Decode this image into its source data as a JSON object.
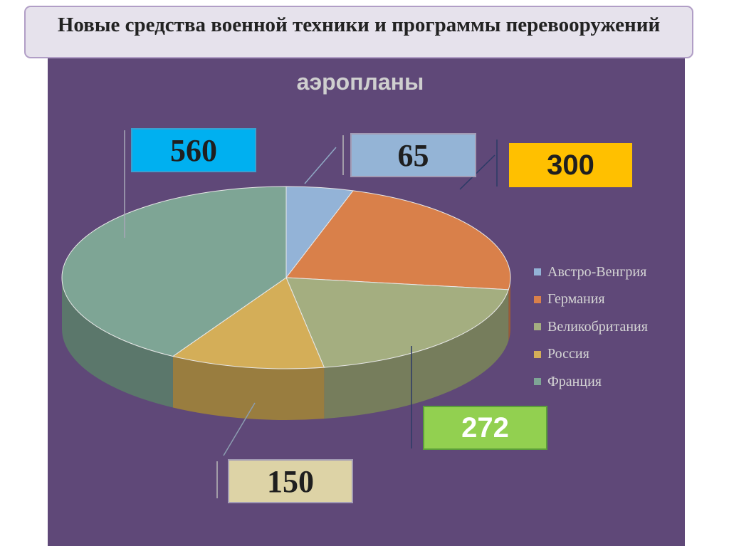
{
  "slide": {
    "title": "Новые средства военной техники и программы перевооружений"
  },
  "chart_data": {
    "type": "pie",
    "title": "аэропланы",
    "categories": [
      "Австро-Венгрия",
      "Германия",
      "Великобритания",
      "Россия",
      "Франция"
    ],
    "values": [
      65,
      300,
      272,
      150,
      560
    ],
    "colors": [
      "#93b3d7",
      "#d9804a",
      "#a4ae80",
      "#d4ae58",
      "#7ea595"
    ],
    "label_colors": [
      "#94b4d6",
      "#ffc000",
      "#92d050",
      "#ddd3a6",
      "#00b0f0"
    ],
    "legend": "right",
    "three_d": true
  }
}
